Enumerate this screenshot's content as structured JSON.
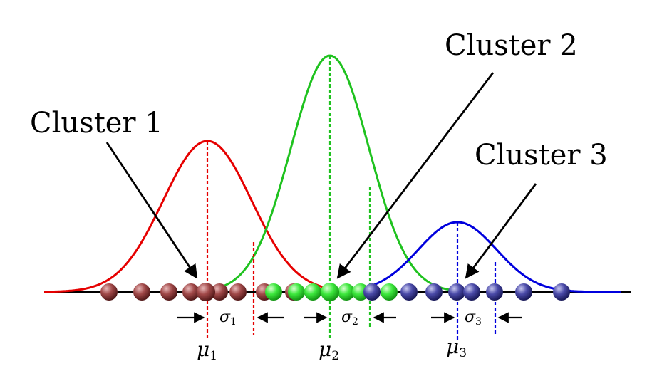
{
  "labels": {
    "cluster1": "Cluster 1",
    "cluster2": "Cluster 2",
    "cluster3": "Cluster 3"
  },
  "symbols": {
    "mu1": "μ",
    "mu1_sub": "1",
    "mu2": "μ",
    "mu2_sub": "2",
    "mu3": "μ",
    "mu3_sub": "3",
    "sigma1": "σ",
    "sigma1_sub": "1",
    "sigma2": "σ",
    "sigma2_sub": "2",
    "sigma3": "σ",
    "sigma3_sub": "3"
  },
  "colors": {
    "cluster1": "#e60000",
    "cluster2": "#1fc21f",
    "cluster3": "#0000dd",
    "axis": "#000000"
  }
}
